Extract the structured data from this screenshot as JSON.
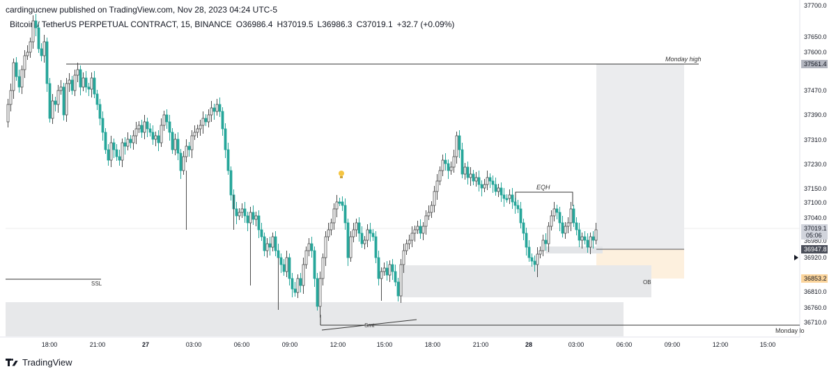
{
  "header": {
    "publisher_line": "cardingucnew published on TradingView.com, Nov 28, 2023 04:24 UTC-5",
    "symbol": "Bitcoin / TetherUS PERPETUAL CONTRACT, 15, BINANCE",
    "open": "O36986.4",
    "high": "H37019.5",
    "low": "L36986.3",
    "close": "C37019.1",
    "change": "+32.7 (+0.09%)"
  },
  "footer": {
    "brand": "TradingView"
  },
  "colors": {
    "up": "#ffffff",
    "up_border": "#4a4a4a",
    "down": "#26a69a",
    "zone": "#e3e5e8",
    "ob": "#fdf0de"
  },
  "chart_data": {
    "type": "candlestick",
    "interval": "15",
    "y_axis_ticks": [
      "37700.0",
      "37650.0",
      "37600.0",
      "37470.0",
      "37390.0",
      "37310.0",
      "37230.0",
      "37150.0",
      "37100.0",
      "37040.0",
      "36980.0",
      "36920.0",
      "36810.0",
      "36760.0",
      "36710.0"
    ],
    "y_axis_tick_values": [
      37700,
      37650,
      37600,
      37470,
      37390,
      37310,
      37230,
      37150,
      37100,
      37040,
      36980,
      36920,
      36810,
      36760,
      36710
    ],
    "x_axis_ticks": [
      "18:00",
      "21:00",
      "27",
      "03:00",
      "06:00",
      "09:00",
      "12:00",
      "15:00",
      "18:00",
      "21:00",
      "28",
      "03:00",
      "06:00",
      "09:00",
      "12:00",
      "15:00"
    ],
    "price_labels": {
      "monday_high": "37561.4",
      "last_price": "37019.1",
      "countdown": "05:06",
      "level_1": "36947.8",
      "level_2": "36853.2"
    },
    "annotations": {
      "monday_high": "Monday high",
      "monday_low": "Monday lo",
      "ssl": "SSL",
      "eqh": "EQH",
      "ob": "OB",
      "smt": "Smt"
    }
  }
}
